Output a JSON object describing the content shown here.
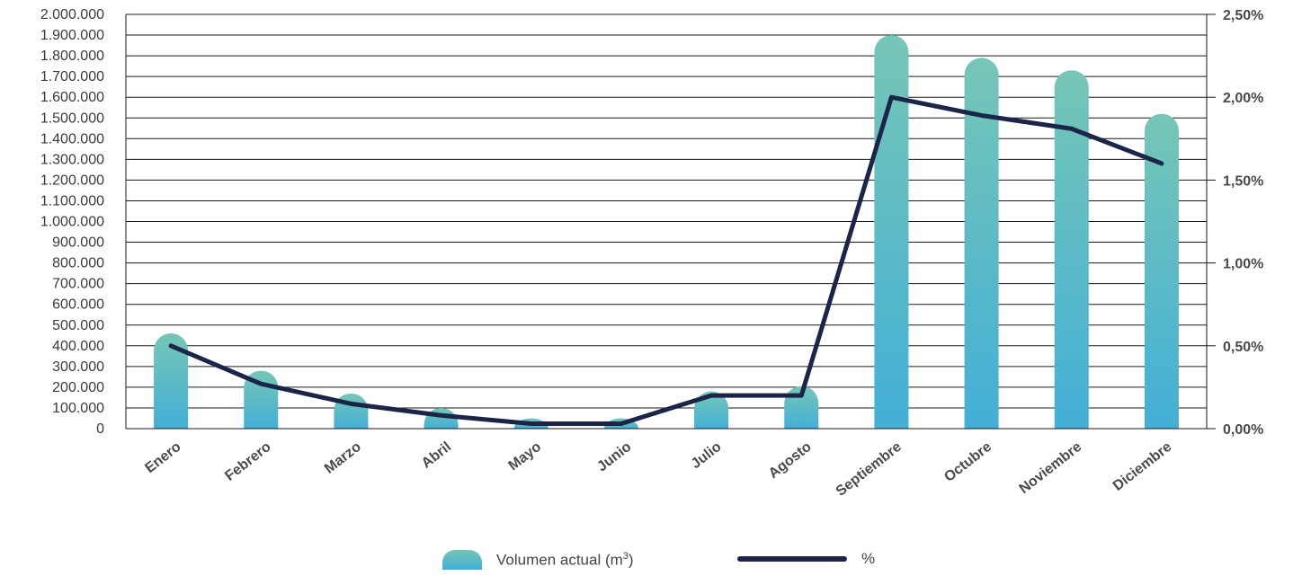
{
  "chart_data": {
    "type": "bar",
    "categories": [
      "Enero",
      "Febrero",
      "Marzo",
      "Abril",
      "Mayo",
      "Junio",
      "Julio",
      "Agosto",
      "Septiembre",
      "Octubre",
      "Noviembre",
      "Diciembre"
    ],
    "series": [
      {
        "name": "Volumen actual (m³)",
        "type": "bar",
        "axis": "left",
        "values": [
          460000,
          280000,
          170000,
          100000,
          50000,
          50000,
          180000,
          205000,
          1900000,
          1790000,
          1730000,
          1520000
        ]
      },
      {
        "name": "%",
        "type": "line",
        "axis": "right",
        "values": [
          0.5,
          0.27,
          0.15,
          0.08,
          0.03,
          0.03,
          0.2,
          0.2,
          2.0,
          1.89,
          1.81,
          1.6
        ]
      }
    ],
    "y_left": {
      "ylim": [
        0,
        2000000
      ],
      "ticks": [
        "0",
        "100.000",
        "200.000",
        "300.000",
        "400.000",
        "500.000",
        "600.000",
        "700.000",
        "800.000",
        "900.000",
        "1.000.000",
        "1.100.000",
        "1.200.000",
        "1.300.000",
        "1.400.000",
        "1.500.000",
        "1.600.000",
        "1.700.000",
        "1.800.000",
        "1.900.000",
        "2.000.000"
      ]
    },
    "y_right": {
      "ylim": [
        0,
        2.5
      ],
      "ticks": [
        "0,00%",
        "0,50%",
        "1,00%",
        "1,50%",
        "2,00%",
        "2,50%"
      ]
    },
    "grid": true,
    "legend_position": "bottom-center",
    "colors": {
      "bar_top": "#76c6b6",
      "bar_bottom": "#43afd7",
      "line": "#1c2548",
      "grid": "#1a1a1a"
    }
  },
  "legend": {
    "bar_label": "Volumen actual (m",
    "bar_label_sup": "3",
    "bar_label_end": ")",
    "line_label": "%"
  }
}
